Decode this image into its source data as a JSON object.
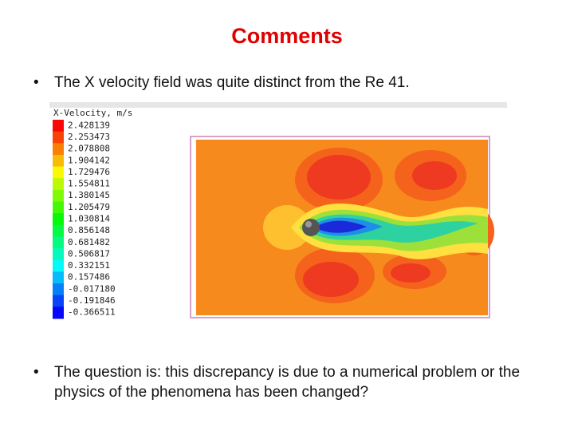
{
  "title": "Comments",
  "bullets": [
    "The X velocity field was quite distinct from the Re 41.",
    "The question is: this discrepancy is due to a numerical problem or the physics of the phenomena has been changed?"
  ],
  "figure": {
    "legend_title": "X-Velocity, m/s",
    "legend_levels": [
      "2.428139",
      "2.253473",
      "2.078808",
      "1.904142",
      "1.729476",
      "1.554811",
      "1.380145",
      "1.205479",
      "1.030814",
      "0.856148",
      "0.681482",
      "0.506817",
      "0.332151",
      "0.157486",
      "-0.017180",
      "-0.191846",
      "-0.366511"
    ]
  }
}
